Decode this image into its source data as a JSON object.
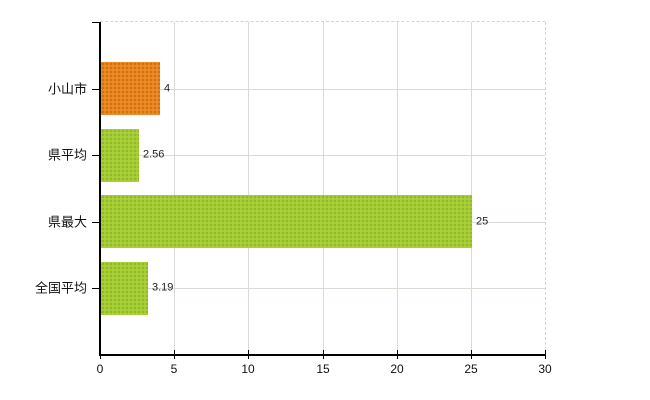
{
  "chart_data": {
    "type": "bar",
    "orientation": "horizontal",
    "title": "",
    "categories": [
      "小山市",
      "県平均",
      "県最大",
      "全国平均"
    ],
    "values": [
      4,
      2.56,
      25,
      3.19
    ],
    "value_labels": [
      "4",
      "2.56",
      "25",
      "3.19"
    ],
    "bar_color_keys": [
      "orange",
      "green",
      "green",
      "green"
    ],
    "colors": {
      "orange": "#E8871E",
      "orange_dot": "#C9660F",
      "orange_lite": "#F5A142",
      "green": "#A4CC33",
      "green_dot": "#8AB126",
      "green_lite": "#BCDC4E",
      "axis": "#000000",
      "grid_vertical": "#D9D9D9",
      "grid_horizontal": "#D4DCD4",
      "plot_border": "#D8D2D8",
      "text": "#111111"
    },
    "xlim": [
      0,
      30
    ],
    "x_ticks": [
      0,
      5,
      10,
      15,
      20,
      25,
      30
    ],
    "x_tick_labels": [
      "0",
      "5",
      "10",
      "15",
      "20",
      "25",
      "30"
    ],
    "grid": {
      "vertical": true,
      "horizontal": true
    },
    "legend": null
  }
}
